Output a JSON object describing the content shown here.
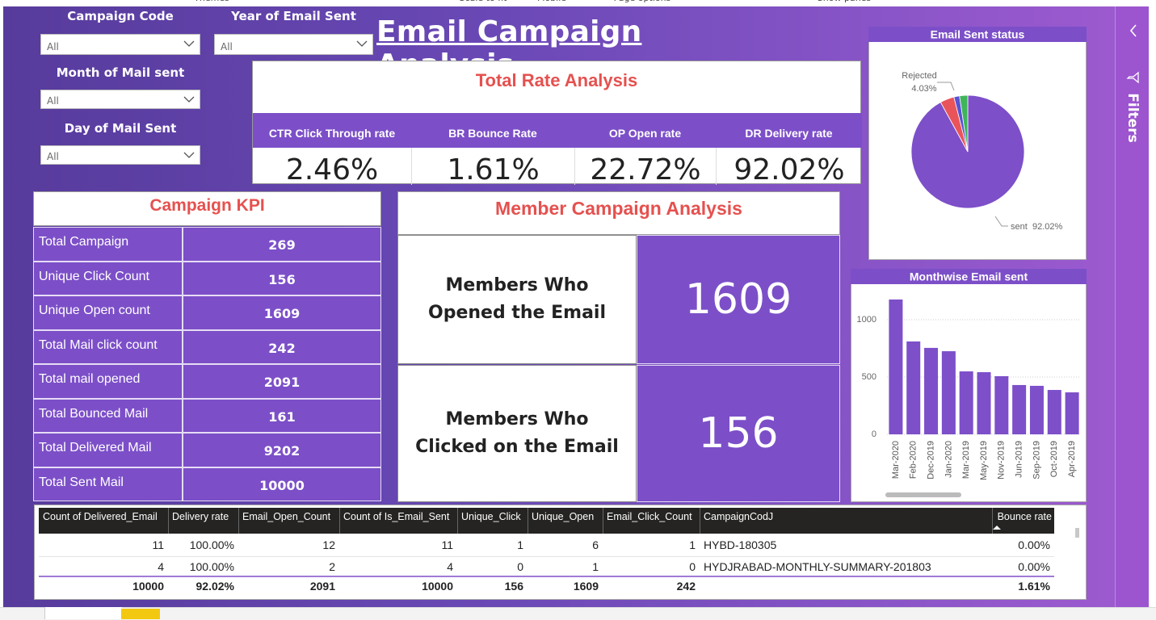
{
  "toolbar": [
    "Themes",
    "Scale to fit",
    "Mobile",
    "Page options",
    "Show panes"
  ],
  "title": "Email Campaign Analysis",
  "filters": [
    {
      "label": "Campaign Code",
      "value": "All"
    },
    {
      "label": "Year of Email Sent",
      "value": "All"
    },
    {
      "label": "Month of Mail sent",
      "value": "All"
    },
    {
      "label": "Day of Mail Sent",
      "value": "All"
    }
  ],
  "rate_panel": {
    "title": "Total Rate Analysis",
    "items": [
      {
        "label": "CTR Click Through rate",
        "value": "2.46%"
      },
      {
        "label": "BR Bounce Rate",
        "value": "1.61%"
      },
      {
        "label": "OP Open rate",
        "value": "22.72%"
      },
      {
        "label": "DR Delivery rate",
        "value": "92.02%"
      }
    ]
  },
  "campaign_kpi": {
    "title": "Campaign KPI",
    "rows": [
      [
        "Total Campaign",
        269
      ],
      [
        "Unique Click Count",
        156
      ],
      [
        "Unique Open count",
        1609
      ],
      [
        "Total Mail click count",
        242
      ],
      [
        "Total mail opened",
        2091
      ],
      [
        "Total Bounced Mail",
        161
      ],
      [
        "Total Delivered Mail",
        9202
      ],
      [
        "Total Sent Mail",
        10000
      ]
    ]
  },
  "member_panel": {
    "title": "Member Campaign Analysis",
    "items": [
      {
        "label": "Members Who Opened the Email",
        "value": 1609
      },
      {
        "label": "Members Who Clicked on the Email",
        "value": 156
      }
    ]
  },
  "chart_data": [
    {
      "type": "pie",
      "title": "Email Sent status",
      "categories": [
        "sent",
        "Rejected",
        null,
        null
      ],
      "values": [
        92.02,
        4.03,
        1.61,
        2.34
      ],
      "value_labels": [
        "92.02%",
        "4.03%",
        null,
        null
      ],
      "colors": [
        "#7d4fc9",
        "#e8545a",
        "#5a52d5",
        "#3fb55a"
      ]
    },
    {
      "type": "bar",
      "title": "Monthwise Email sent",
      "categories": [
        "Mar-2020",
        "Feb-2020",
        "Dec-2019",
        "Jan-2020",
        "Mar-2019",
        "May-2019",
        "Nov-2019",
        "Jun-2019",
        "Sep-2019",
        "Oct-2019",
        "Apr-2019"
      ],
      "values": [
        1176,
        810,
        754,
        725,
        549,
        542,
        507,
        430,
        423,
        387,
        366
      ],
      "color": "#7d4fc9",
      "ylim": [
        0,
        1250
      ],
      "yticks": [
        0,
        500,
        1000
      ],
      "grid": true
    }
  ],
  "table": {
    "columns": [
      "Count of Delivered_Email",
      "Delivery rate",
      "Email_Open_Count",
      "Count of Is_Email_Sent",
      "Unique_Click",
      "Unique_Open",
      "Email_Click_Count",
      "CampaignCodJ",
      "Bounce rate"
    ],
    "rows": [
      [
        11,
        "100.00%",
        12,
        11,
        1,
        6,
        1,
        "HYBD-180305",
        "0.00%"
      ],
      [
        4,
        "100.00%",
        2,
        4,
        0,
        1,
        0,
        "HYDJRABAD-MONTHLY-SUMMARY-201803",
        "0.00%"
      ]
    ],
    "total": [
      10000,
      "92.02%",
      2091,
      10000,
      156,
      1609,
      242,
      null,
      "1.61%"
    ]
  },
  "sidebar": {
    "label": "Filters"
  }
}
